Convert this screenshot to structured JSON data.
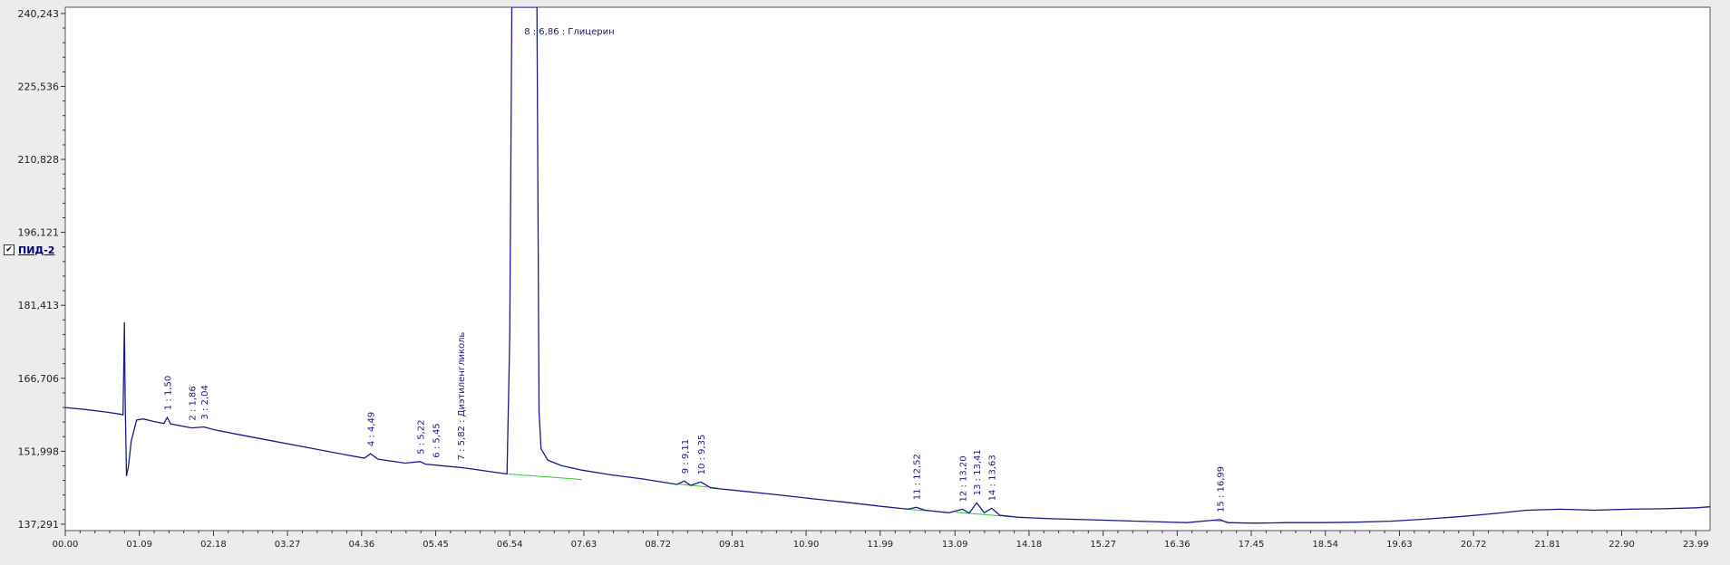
{
  "chart_data": {
    "type": "line",
    "title": "",
    "xlabel": "",
    "ylabel": "",
    "xlim": [
      0,
      24.2
    ],
    "ylim": [
      136.0,
      241.5
    ],
    "grid": false,
    "legend": {
      "placement": "left",
      "series_name": "ПИД-2",
      "checked": true
    },
    "colors": {
      "signal": "#1a1a8c",
      "baseline": "#33cc33",
      "text": "#1a1a80",
      "background": "#ffffff"
    },
    "y_ticks": [
      137.291,
      151.998,
      166.706,
      181.413,
      196.121,
      210.828,
      225.536,
      240.243
    ],
    "y_tick_labels": [
      "137,291",
      "151,998",
      "166,706",
      "181,413",
      "196,121",
      "210,828",
      "225,536",
      "240,243"
    ],
    "x_ticks": [
      0.0,
      1.09,
      2.18,
      3.27,
      4.36,
      5.45,
      6.54,
      7.63,
      8.72,
      9.81,
      10.9,
      11.99,
      13.09,
      14.18,
      15.27,
      16.36,
      17.45,
      18.54,
      19.63,
      20.72,
      21.81,
      22.9,
      23.99
    ],
    "x_tick_labels": [
      "00.00",
      "01.09",
      "02.18",
      "03.27",
      "04.36",
      "05.45",
      "06.54",
      "07.63",
      "08.72",
      "09.81",
      "10.90",
      "11.99",
      "13.09",
      "14.18",
      "15.27",
      "16.36",
      "17.45",
      "18.54",
      "19.63",
      "20.72",
      "21.81",
      "22.90",
      "23.99"
    ],
    "series": [
      {
        "name": "ПИД-2",
        "x": [
          0.0,
          0.3,
          0.6,
          0.8,
          0.85,
          0.87,
          0.88,
          0.9,
          0.93,
          0.97,
          1.05,
          1.15,
          1.3,
          1.45,
          1.5,
          1.55,
          1.86,
          2.04,
          2.2,
          2.5,
          3.0,
          3.5,
          4.0,
          4.4,
          4.49,
          4.6,
          5.0,
          5.22,
          5.3,
          5.45,
          5.6,
          5.82,
          6.0,
          6.3,
          6.5,
          6.54,
          6.57,
          6.6,
          6.7,
          6.86,
          6.9,
          6.94,
          6.97,
          7.0,
          7.1,
          7.3,
          7.6,
          8.0,
          8.5,
          9.0,
          9.11,
          9.2,
          9.35,
          9.5,
          10.0,
          10.5,
          11.0,
          11.5,
          12.0,
          12.4,
          12.52,
          12.65,
          13.0,
          13.2,
          13.3,
          13.41,
          13.52,
          13.63,
          13.75,
          14.0,
          14.5,
          15.0,
          15.5,
          16.0,
          16.5,
          16.99,
          17.1,
          17.5,
          18.0,
          18.5,
          19.0,
          19.5,
          20.0,
          20.5,
          21.0,
          21.5,
          22.0,
          22.5,
          23.0,
          23.5,
          24.0,
          24.2
        ],
        "values": [
          160.8,
          160.4,
          159.9,
          159.5,
          159.3,
          178.0,
          163.0,
          147.0,
          149.0,
          154.0,
          158.3,
          158.5,
          158.0,
          157.6,
          158.8,
          157.5,
          156.7,
          156.9,
          156.3,
          155.5,
          154.2,
          152.9,
          151.6,
          150.6,
          151.5,
          150.4,
          149.6,
          149.9,
          149.4,
          149.2,
          149.0,
          148.7,
          148.4,
          147.8,
          147.4,
          175.0,
          241.5,
          241.5,
          241.5,
          241.5,
          241.5,
          241.5,
          160.0,
          152.5,
          150.2,
          149.1,
          148.2,
          147.3,
          146.4,
          145.3,
          146.0,
          145.1,
          145.8,
          144.6,
          143.9,
          143.2,
          142.4,
          141.7,
          140.9,
          140.3,
          140.7,
          140.1,
          139.6,
          140.3,
          139.5,
          141.6,
          139.6,
          140.5,
          139.1,
          138.7,
          138.4,
          138.2,
          138.0,
          137.8,
          137.6,
          138.2,
          137.6,
          137.5,
          137.6,
          137.6,
          137.7,
          137.9,
          138.3,
          138.8,
          139.4,
          140.1,
          140.3,
          140.1,
          140.3,
          140.4,
          140.6,
          140.8
        ]
      }
    ],
    "baseline_segments": [
      {
        "x": [
          6.52,
          7.6
        ],
        "values": [
          147.4,
          146.3
        ]
      },
      {
        "x": [
          9.0,
          9.6
        ],
        "values": [
          145.4,
          144.6
        ]
      },
      {
        "x": [
          12.4,
          12.7
        ],
        "values": [
          140.3,
          140.0
        ]
      },
      {
        "x": [
          13.1,
          13.9
        ],
        "values": [
          139.7,
          138.8
        ]
      },
      {
        "x": [
          16.9,
          17.1
        ],
        "values": [
          138.0,
          137.8
        ]
      }
    ],
    "peaks": [
      {
        "label": "1 : 1,50",
        "x": 1.5,
        "y": 158.8
      },
      {
        "label": "2 : 1,86",
        "x": 1.86,
        "y": 156.7
      },
      {
        "label": "3 : 2,04",
        "x": 2.04,
        "y": 156.9
      },
      {
        "label": "4 : 4,49",
        "x": 4.49,
        "y": 151.5
      },
      {
        "label": "5 : 5,22",
        "x": 5.22,
        "y": 149.9
      },
      {
        "label": "6 : 5,45",
        "x": 5.45,
        "y": 149.2
      },
      {
        "label": "7 : 5,82 : Диэтиленгликоль",
        "x": 5.82,
        "y": 148.7
      },
      {
        "label": "8 : 6,86 : Глицерин",
        "x": 6.86,
        "y": 241.5
      },
      {
        "label": "9 : 9,11",
        "x": 9.11,
        "y": 146.0
      },
      {
        "label": "10 : 9,35",
        "x": 9.35,
        "y": 145.8
      },
      {
        "label": "11 : 12,52",
        "x": 12.52,
        "y": 140.7
      },
      {
        "label": "12 : 13,20",
        "x": 13.2,
        "y": 140.3
      },
      {
        "label": "13 : 13,41",
        "x": 13.41,
        "y": 141.6
      },
      {
        "label": "14 : 13,63",
        "x": 13.63,
        "y": 140.5
      },
      {
        "label": "15 : 16,99",
        "x": 16.99,
        "y": 138.2
      }
    ]
  }
}
